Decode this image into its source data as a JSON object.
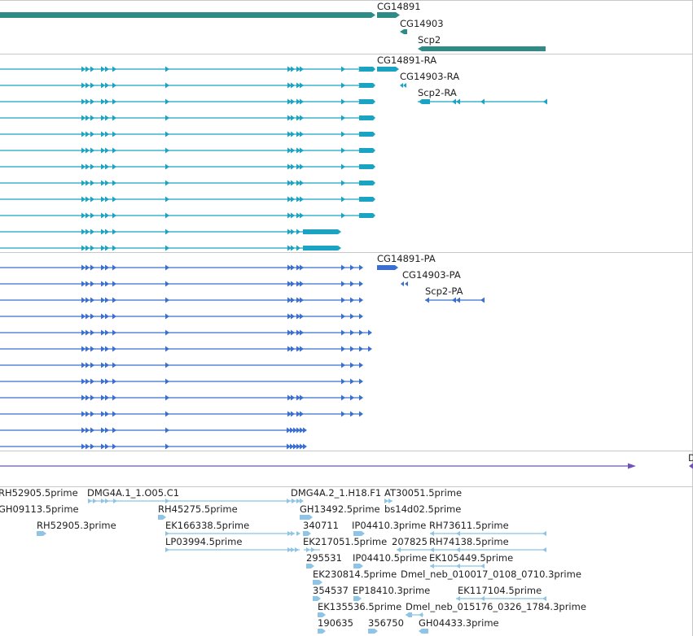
{
  "colors": {
    "gene": "#2e8b87",
    "mrna": "#1aa3c2",
    "protein": "#3a6fd0",
    "tiling": "#6f52b8",
    "est": "#8ec4e6",
    "divider": "#c8c8c8",
    "text": "#222222"
  },
  "tracks": {
    "gene": {
      "labels": [
        "CG14891",
        "CG14903",
        "Scp2"
      ]
    },
    "mrna": {
      "labels": [
        "CG14891-RA",
        "CG14903-RA",
        "Scp2-RA"
      ]
    },
    "protein": {
      "labels": [
        "CG14891-PA",
        "CG14903-PA",
        "Scp2-PA"
      ]
    },
    "tiling": {
      "label": "D"
    },
    "est": {
      "labels": [
        "RH52905.5prime",
        "DMG4A.1_1.O05.C1",
        "DMG4A.2_1.H18.F1",
        "AT30051.5prime",
        "GH09113.5prime",
        "RH45275.5prime",
        "GH13492.5prime",
        "bs14d02.5prime",
        "RH52905.3prime",
        "EK166338.5prime",
        "340711",
        "IP04410.3prime",
        "RH73611.5prime",
        "LP03994.5prime",
        "EK217051.5prime",
        "207825",
        "RH74138.5prime",
        "295531",
        "IP04410.5prime",
        "EK105449.5prime",
        "EK230814.5prime",
        "Dmel_neb_010017_0108_0710.3prime",
        "354537",
        "EP18410.3prime",
        "EK117104.5prime",
        "EK135536.5prime",
        "Dmel_neb_015176_0326_1784.3prime",
        "190635",
        "356750",
        "GH04433.3prime"
      ]
    }
  }
}
